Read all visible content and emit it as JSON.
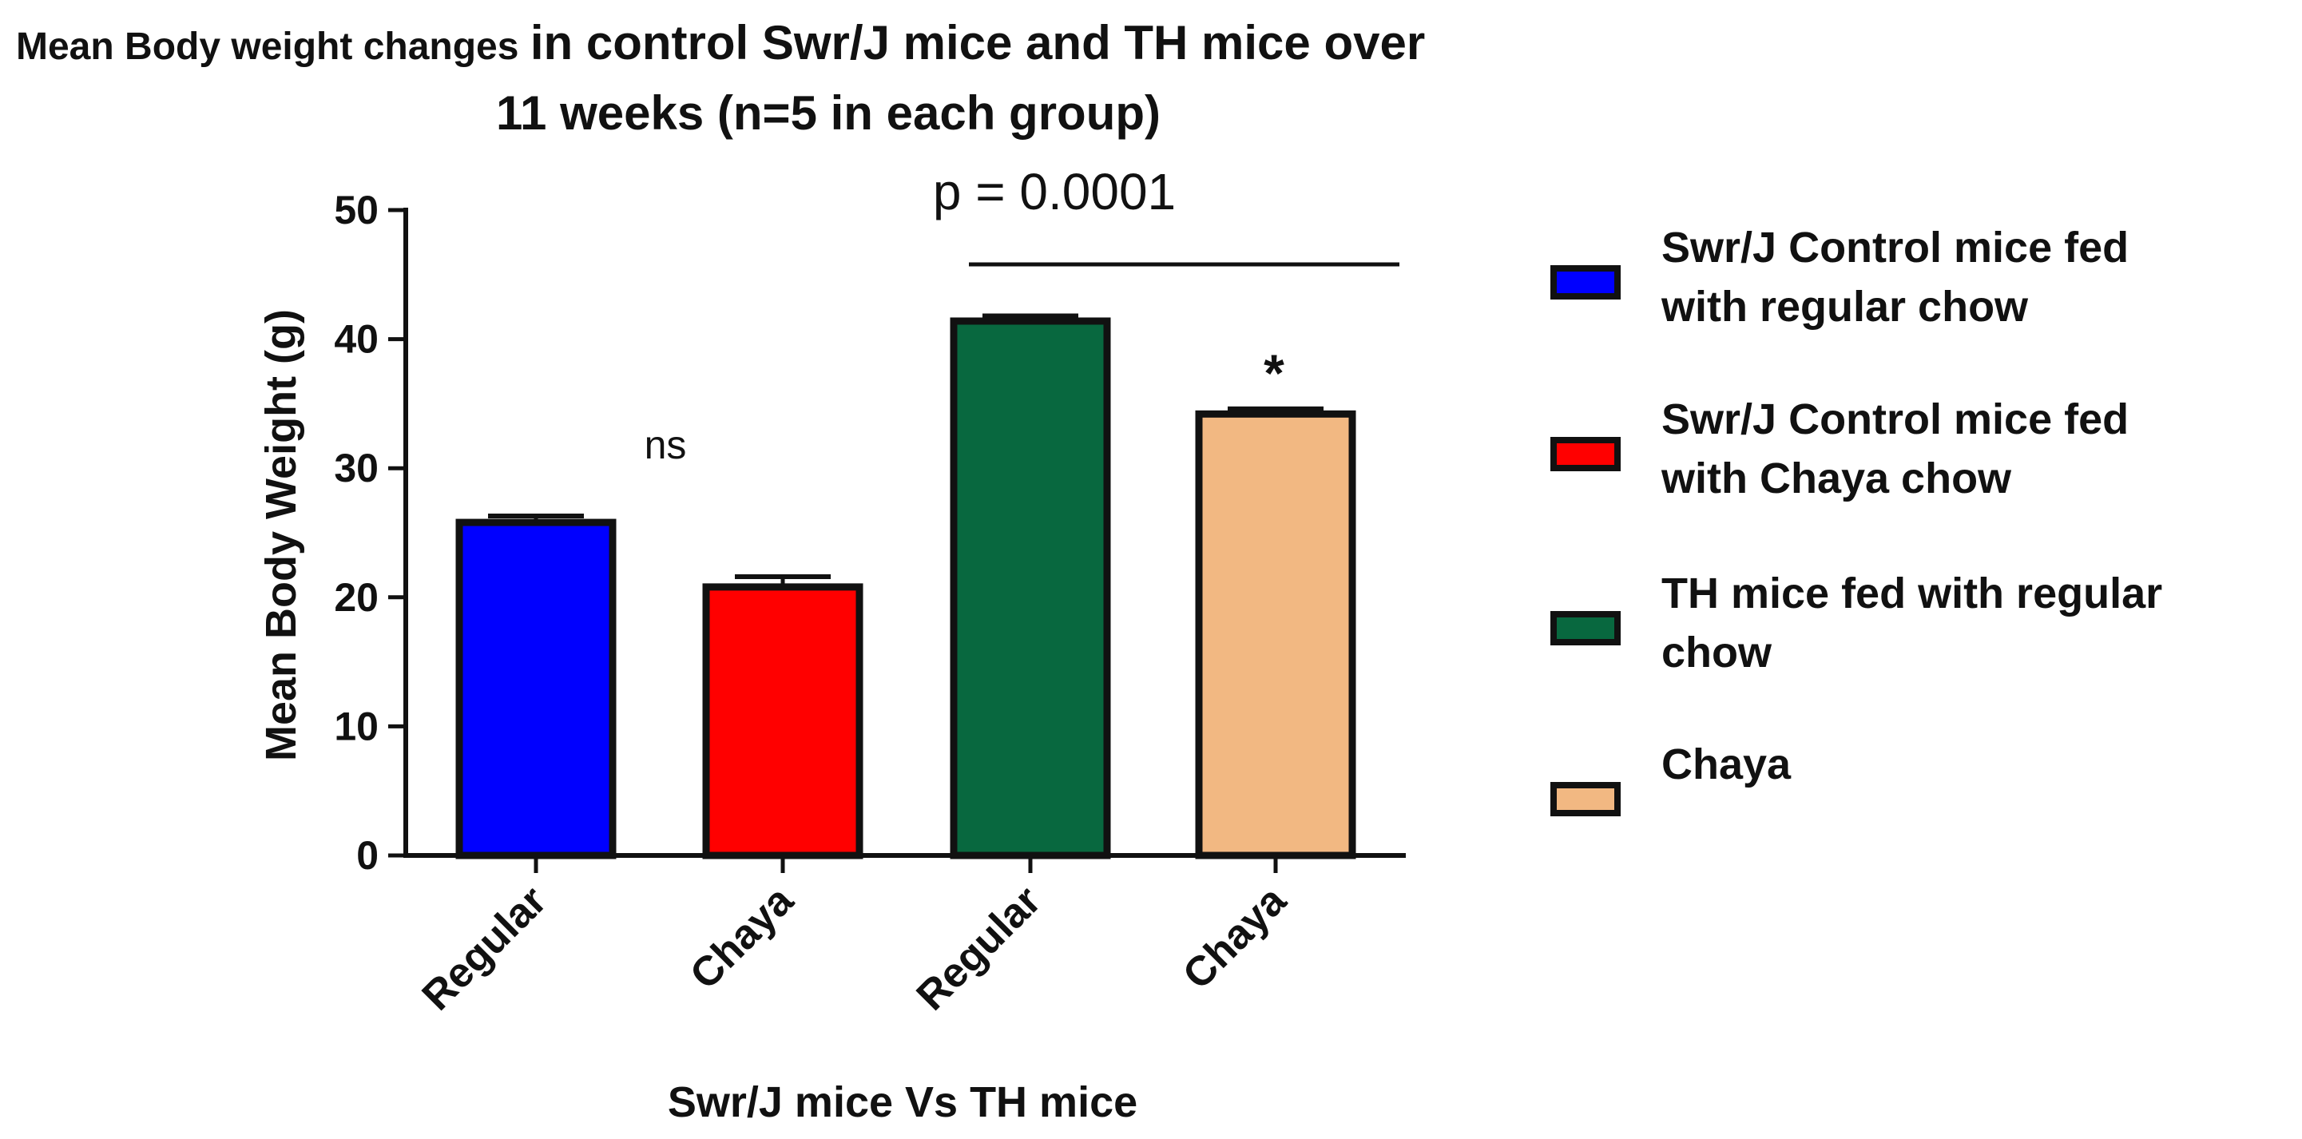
{
  "chart_data": {
    "type": "bar",
    "title_line1_small": "Mean Body weight changes",
    "title_line1_large": "in control Swr/J mice and TH mice over",
    "title_line2": "11 weeks (n=5 in each group)",
    "xlabel": "Swr/J mice Vs TH mice",
    "ylabel": "Mean Body Weight (g)",
    "ylim": [
      0,
      50
    ],
    "yticks": [
      0,
      10,
      20,
      30,
      40,
      50
    ],
    "categories": [
      "Regular",
      "Chaya",
      "Regular",
      "Chaya"
    ],
    "values": [
      25.8,
      20.8,
      41.4,
      34.2
    ],
    "errors": [
      0.5,
      0.8,
      0.4,
      0.4
    ],
    "colors": [
      "#0000ff",
      "#ff0000",
      "#08683f",
      "#f2b882"
    ],
    "annotations": {
      "ns": "ns",
      "star": "*",
      "pvalue": "p = 0.0001"
    },
    "legend": [
      {
        "lines": [
          "Swr/J Control mice fed",
          "with regular chow"
        ],
        "color": "#0000ff"
      },
      {
        "lines": [
          "Swr/J Control mice fed",
          "with Chaya chow"
        ],
        "color": "#ff0000"
      },
      {
        "lines": [
          "TH mice fed with regular",
          "chow"
        ],
        "color": "#08683f"
      },
      {
        "lines": [
          "Chaya"
        ],
        "color": "#f2b882"
      }
    ]
  }
}
